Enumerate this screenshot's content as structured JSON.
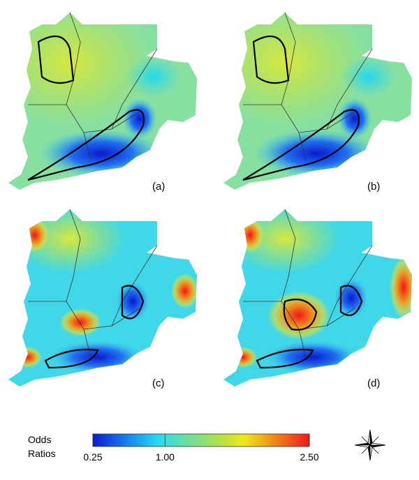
{
  "panels": [
    {
      "label": "(a)"
    },
    {
      "label": "(b)"
    },
    {
      "label": "(c)"
    },
    {
      "label": "(d)"
    }
  ],
  "legend": {
    "title": "Odds Ratios",
    "range": [
      0.25,
      2.5
    ],
    "ticks": [
      0.25,
      {
        "value": 1,
        "label": "1.00"
      },
      {
        "value": 2.5,
        "label": "2.50"
      }
    ]
  }
}
